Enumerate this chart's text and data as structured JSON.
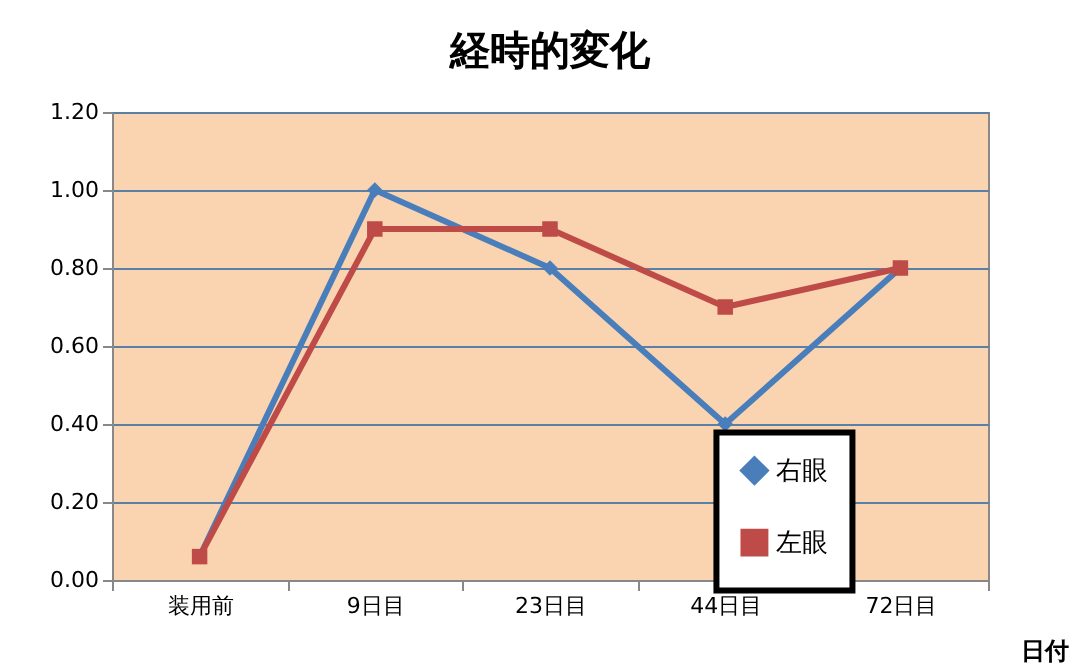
{
  "chart_data": {
    "type": "line",
    "title": "経時的変化",
    "xlabel": "日付",
    "categories": [
      "装用前",
      "9日目",
      "23日目",
      "44日目",
      "72日目"
    ],
    "series": [
      {
        "name": "右眼",
        "color": "#4a7ebb",
        "marker": "diamond",
        "values": [
          0.06,
          1.0,
          0.8,
          0.4,
          0.8
        ]
      },
      {
        "name": "左眼",
        "color": "#be4b48",
        "marker": "square",
        "values": [
          0.06,
          0.9,
          0.9,
          0.7,
          0.8
        ]
      }
    ],
    "ylim": [
      0,
      1.2
    ],
    "yticks": [
      {
        "value": 0,
        "label": "0.00"
      },
      {
        "value": 0.2,
        "label": "0.20"
      },
      {
        "value": 0.4,
        "label": "0.40"
      },
      {
        "value": 0.6,
        "label": "0.60"
      },
      {
        "value": 0.8,
        "label": "0.80"
      },
      {
        "value": 1.0,
        "label": "1.00"
      },
      {
        "value": 1.2,
        "label": "1.20"
      }
    ],
    "grid": "y",
    "legend": "bottom right",
    "line_style": "solid"
  }
}
